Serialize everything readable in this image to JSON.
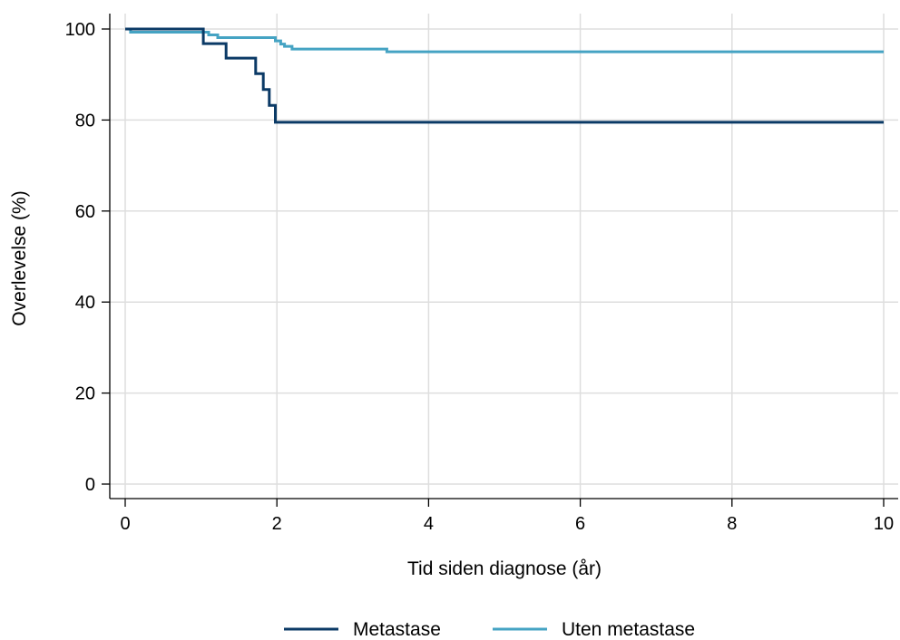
{
  "chart_data": {
    "type": "line",
    "title": "",
    "xlabel": "Tid siden diagnose (år)",
    "ylabel": "Overlevelse (%)",
    "xlim": [
      0,
      10
    ],
    "ylim": [
      0,
      100
    ],
    "x_ticks": [
      "0",
      "2",
      "4",
      "6",
      "8",
      "10"
    ],
    "y_ticks": [
      "0",
      "20",
      "40",
      "60",
      "80",
      "100"
    ],
    "grid": true,
    "legend_position": "bottom",
    "step": true,
    "series": [
      {
        "name": "Metastase",
        "color": "#0b3a66",
        "points": [
          [
            0,
            100
          ],
          [
            1.03,
            100
          ],
          [
            1.03,
            96.8
          ],
          [
            1.33,
            96.8
          ],
          [
            1.33,
            93.6
          ],
          [
            1.72,
            93.6
          ],
          [
            1.72,
            90.2
          ],
          [
            1.82,
            90.2
          ],
          [
            1.82,
            86.7
          ],
          [
            1.9,
            86.7
          ],
          [
            1.9,
            83.2
          ],
          [
            1.98,
            83.2
          ],
          [
            1.98,
            79.5
          ],
          [
            10,
            79.5
          ]
        ]
      },
      {
        "name": "Uten metastase",
        "color": "#45a3c3",
        "points": [
          [
            0,
            100
          ],
          [
            0.07,
            100
          ],
          [
            0.07,
            99.3
          ],
          [
            1.1,
            99.3
          ],
          [
            1.1,
            98.7
          ],
          [
            1.22,
            98.7
          ],
          [
            1.22,
            98.1
          ],
          [
            1.98,
            98.1
          ],
          [
            1.98,
            97.4
          ],
          [
            2.05,
            97.4
          ],
          [
            2.05,
            96.7
          ],
          [
            2.1,
            96.7
          ],
          [
            2.1,
            96.2
          ],
          [
            2.2,
            96.2
          ],
          [
            2.2,
            95.6
          ],
          [
            3.45,
            95.6
          ],
          [
            3.45,
            95
          ],
          [
            10,
            95
          ]
        ]
      }
    ]
  }
}
